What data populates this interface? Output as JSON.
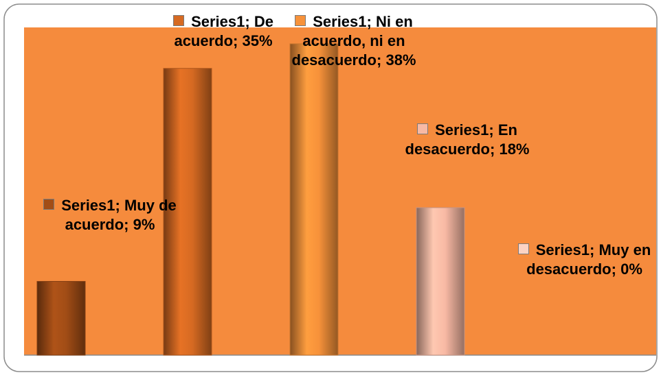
{
  "chart_data": {
    "type": "bar",
    "series_name": "Series1",
    "label_separator": ";",
    "categories": [
      "Muy de acuerdo",
      "De acuerdo",
      "Ni en acuerdo, ni en desacuerdo",
      "En desacuerdo",
      "Muy en desacuerdo"
    ],
    "values": [
      9,
      35,
      38,
      18,
      0
    ],
    "value_labels": [
      "9%",
      "35%",
      "38%",
      "18%",
      "0%"
    ],
    "colors": [
      "#a24d16",
      "#d66a22",
      "#f7923a",
      "#f8b9a4",
      "#fcd3c4"
    ],
    "ylim": [
      0,
      40
    ]
  }
}
